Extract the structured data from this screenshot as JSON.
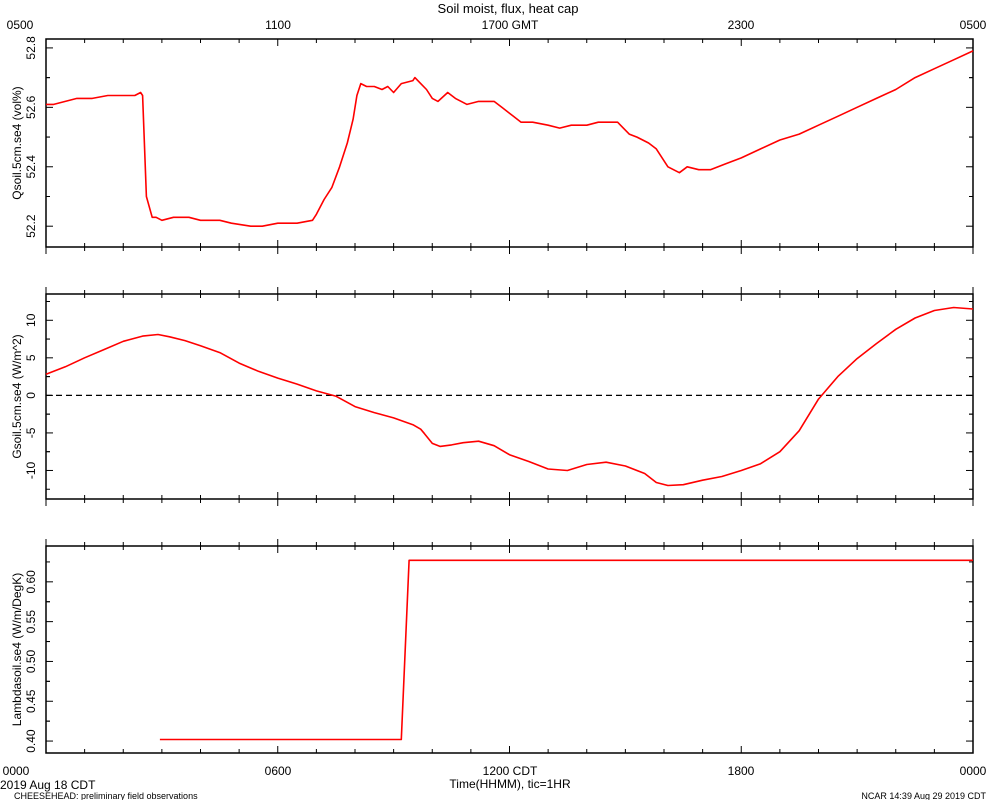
{
  "title": "Soil moist, flux, heat cap",
  "top_axis_labels": [
    "0500",
    "1100",
    "1700 GMT",
    "2300",
    "0500"
  ],
  "bottom_axis_labels": [
    "0000",
    "0600",
    "1200 CDT",
    "1800",
    "0000"
  ],
  "xlabel": "Time(HHMM), tic=1HR",
  "date_label": "2019 Aug 18 CDT",
  "footer_left": "CHEESEHEAD: preliminary field observations",
  "footer_right": "NCAR 14:39 Aug 29 2019 CDT",
  "line_color": "#ff0000",
  "chart_data": [
    {
      "type": "line",
      "ylabel": "Qsoil.5cm.se4 (vol%)",
      "x_unit": "hours since 0000 CDT",
      "xlim": [
        0,
        24
      ],
      "ylim": [
        52.13,
        52.83
      ],
      "yticks": [
        52.2,
        52.4,
        52.6,
        52.8
      ],
      "ytick_labels": [
        "52.2",
        "52.4",
        "52.6",
        "52.8"
      ],
      "grid": false,
      "x": [
        0,
        0.2,
        0.5,
        0.8,
        1.2,
        1.6,
        2.0,
        2.3,
        2.45,
        2.5,
        2.6,
        2.75,
        2.85,
        3.0,
        3.3,
        3.7,
        4.0,
        4.5,
        4.8,
        5.3,
        5.6,
        6.0,
        6.5,
        6.9,
        7.0,
        7.2,
        7.4,
        7.6,
        7.8,
        7.95,
        8.05,
        8.15,
        8.3,
        8.5,
        8.7,
        8.85,
        9.0,
        9.2,
        9.5,
        9.55,
        9.7,
        9.85,
        10.0,
        10.15,
        10.4,
        10.6,
        10.9,
        11.2,
        11.6,
        11.8,
        12.1,
        12.3,
        12.6,
        13.0,
        13.3,
        13.6,
        14.0,
        14.3,
        14.6,
        14.8,
        15.1,
        15.3,
        15.6,
        15.8,
        16.1,
        16.4,
        16.6,
        16.9,
        17.2,
        17.6,
        18.0,
        18.5,
        19.0,
        19.5,
        20.0,
        20.5,
        21.0,
        21.5,
        22.0,
        22.5,
        23.0,
        23.5,
        24.0
      ],
      "y": [
        52.61,
        52.61,
        52.62,
        52.63,
        52.63,
        52.64,
        52.64,
        52.64,
        52.65,
        52.64,
        52.3,
        52.23,
        52.23,
        52.22,
        52.23,
        52.23,
        52.22,
        52.22,
        52.21,
        52.2,
        52.2,
        52.21,
        52.21,
        52.22,
        52.24,
        52.29,
        52.33,
        52.4,
        52.48,
        52.56,
        52.64,
        52.68,
        52.67,
        52.67,
        52.66,
        52.67,
        52.65,
        52.68,
        52.69,
        52.7,
        52.68,
        52.66,
        52.63,
        52.62,
        52.65,
        52.63,
        52.61,
        52.62,
        52.62,
        52.6,
        52.57,
        52.55,
        52.55,
        52.54,
        52.53,
        52.54,
        52.54,
        52.55,
        52.55,
        52.55,
        52.51,
        52.5,
        52.48,
        52.46,
        52.4,
        52.38,
        52.4,
        52.39,
        52.39,
        52.41,
        52.43,
        52.46,
        52.49,
        52.51,
        52.54,
        52.57,
        52.6,
        52.63,
        52.66,
        52.7,
        52.73,
        52.76,
        52.79
      ]
    },
    {
      "type": "line",
      "ylabel": "Gsoil.5cm.se4 (W/m^2)",
      "x_unit": "hours since 0000 CDT",
      "xlim": [
        0,
        24
      ],
      "ylim": [
        -13.8,
        13.5
      ],
      "yticks": [
        -10,
        -5,
        0,
        5,
        10
      ],
      "ytick_labels": [
        "-10",
        "-5",
        "0",
        "5",
        "10"
      ],
      "reference_line": 0,
      "grid": false,
      "x": [
        0,
        0.5,
        1.0,
        1.5,
        2.0,
        2.5,
        2.9,
        3.2,
        3.6,
        4.0,
        4.5,
        5.0,
        5.5,
        6.0,
        6.5,
        7.0,
        7.5,
        8.0,
        8.5,
        9.0,
        9.5,
        9.7,
        9.8,
        10.0,
        10.2,
        10.5,
        10.8,
        11.2,
        11.6,
        12.0,
        12.5,
        13.0,
        13.5,
        14.0,
        14.5,
        15.0,
        15.5,
        15.8,
        16.1,
        16.5,
        17.0,
        17.5,
        18.0,
        18.5,
        19.0,
        19.5,
        20.0,
        20.5,
        21.0,
        21.5,
        22.0,
        22.5,
        23.0,
        23.5,
        24.0
      ],
      "y": [
        2.8,
        3.8,
        5.0,
        6.1,
        7.2,
        7.9,
        8.1,
        7.8,
        7.3,
        6.6,
        5.7,
        4.3,
        3.2,
        2.3,
        1.5,
        0.6,
        -0.1,
        -1.5,
        -2.3,
        -3.0,
        -3.9,
        -4.5,
        -5.1,
        -6.4,
        -6.8,
        -6.6,
        -6.3,
        -6.1,
        -6.7,
        -7.9,
        -8.8,
        -9.8,
        -10.0,
        -9.2,
        -8.9,
        -9.4,
        -10.4,
        -11.6,
        -12.0,
        -11.9,
        -11.3,
        -10.8,
        -10.0,
        -9.1,
        -7.5,
        -4.7,
        -0.5,
        2.5,
        4.9,
        6.9,
        8.8,
        10.3,
        11.3,
        11.7,
        11.5
      ]
    },
    {
      "type": "line",
      "ylabel": "Lambdasoil.se4 (W/m/DegK)",
      "x_unit": "hours since 0000 CDT",
      "xlim": [
        0,
        24
      ],
      "ylim": [
        0.385,
        0.645
      ],
      "yticks": [
        0.4,
        0.45,
        0.5,
        0.55,
        0.6
      ],
      "ytick_labels": [
        "0.40",
        "0.45",
        "0.50",
        "0.55",
        "0.60"
      ],
      "grid": false,
      "x": [
        2.95,
        9.2,
        9.4,
        24.0
      ],
      "y": [
        0.402,
        0.402,
        0.627,
        0.627
      ]
    }
  ]
}
